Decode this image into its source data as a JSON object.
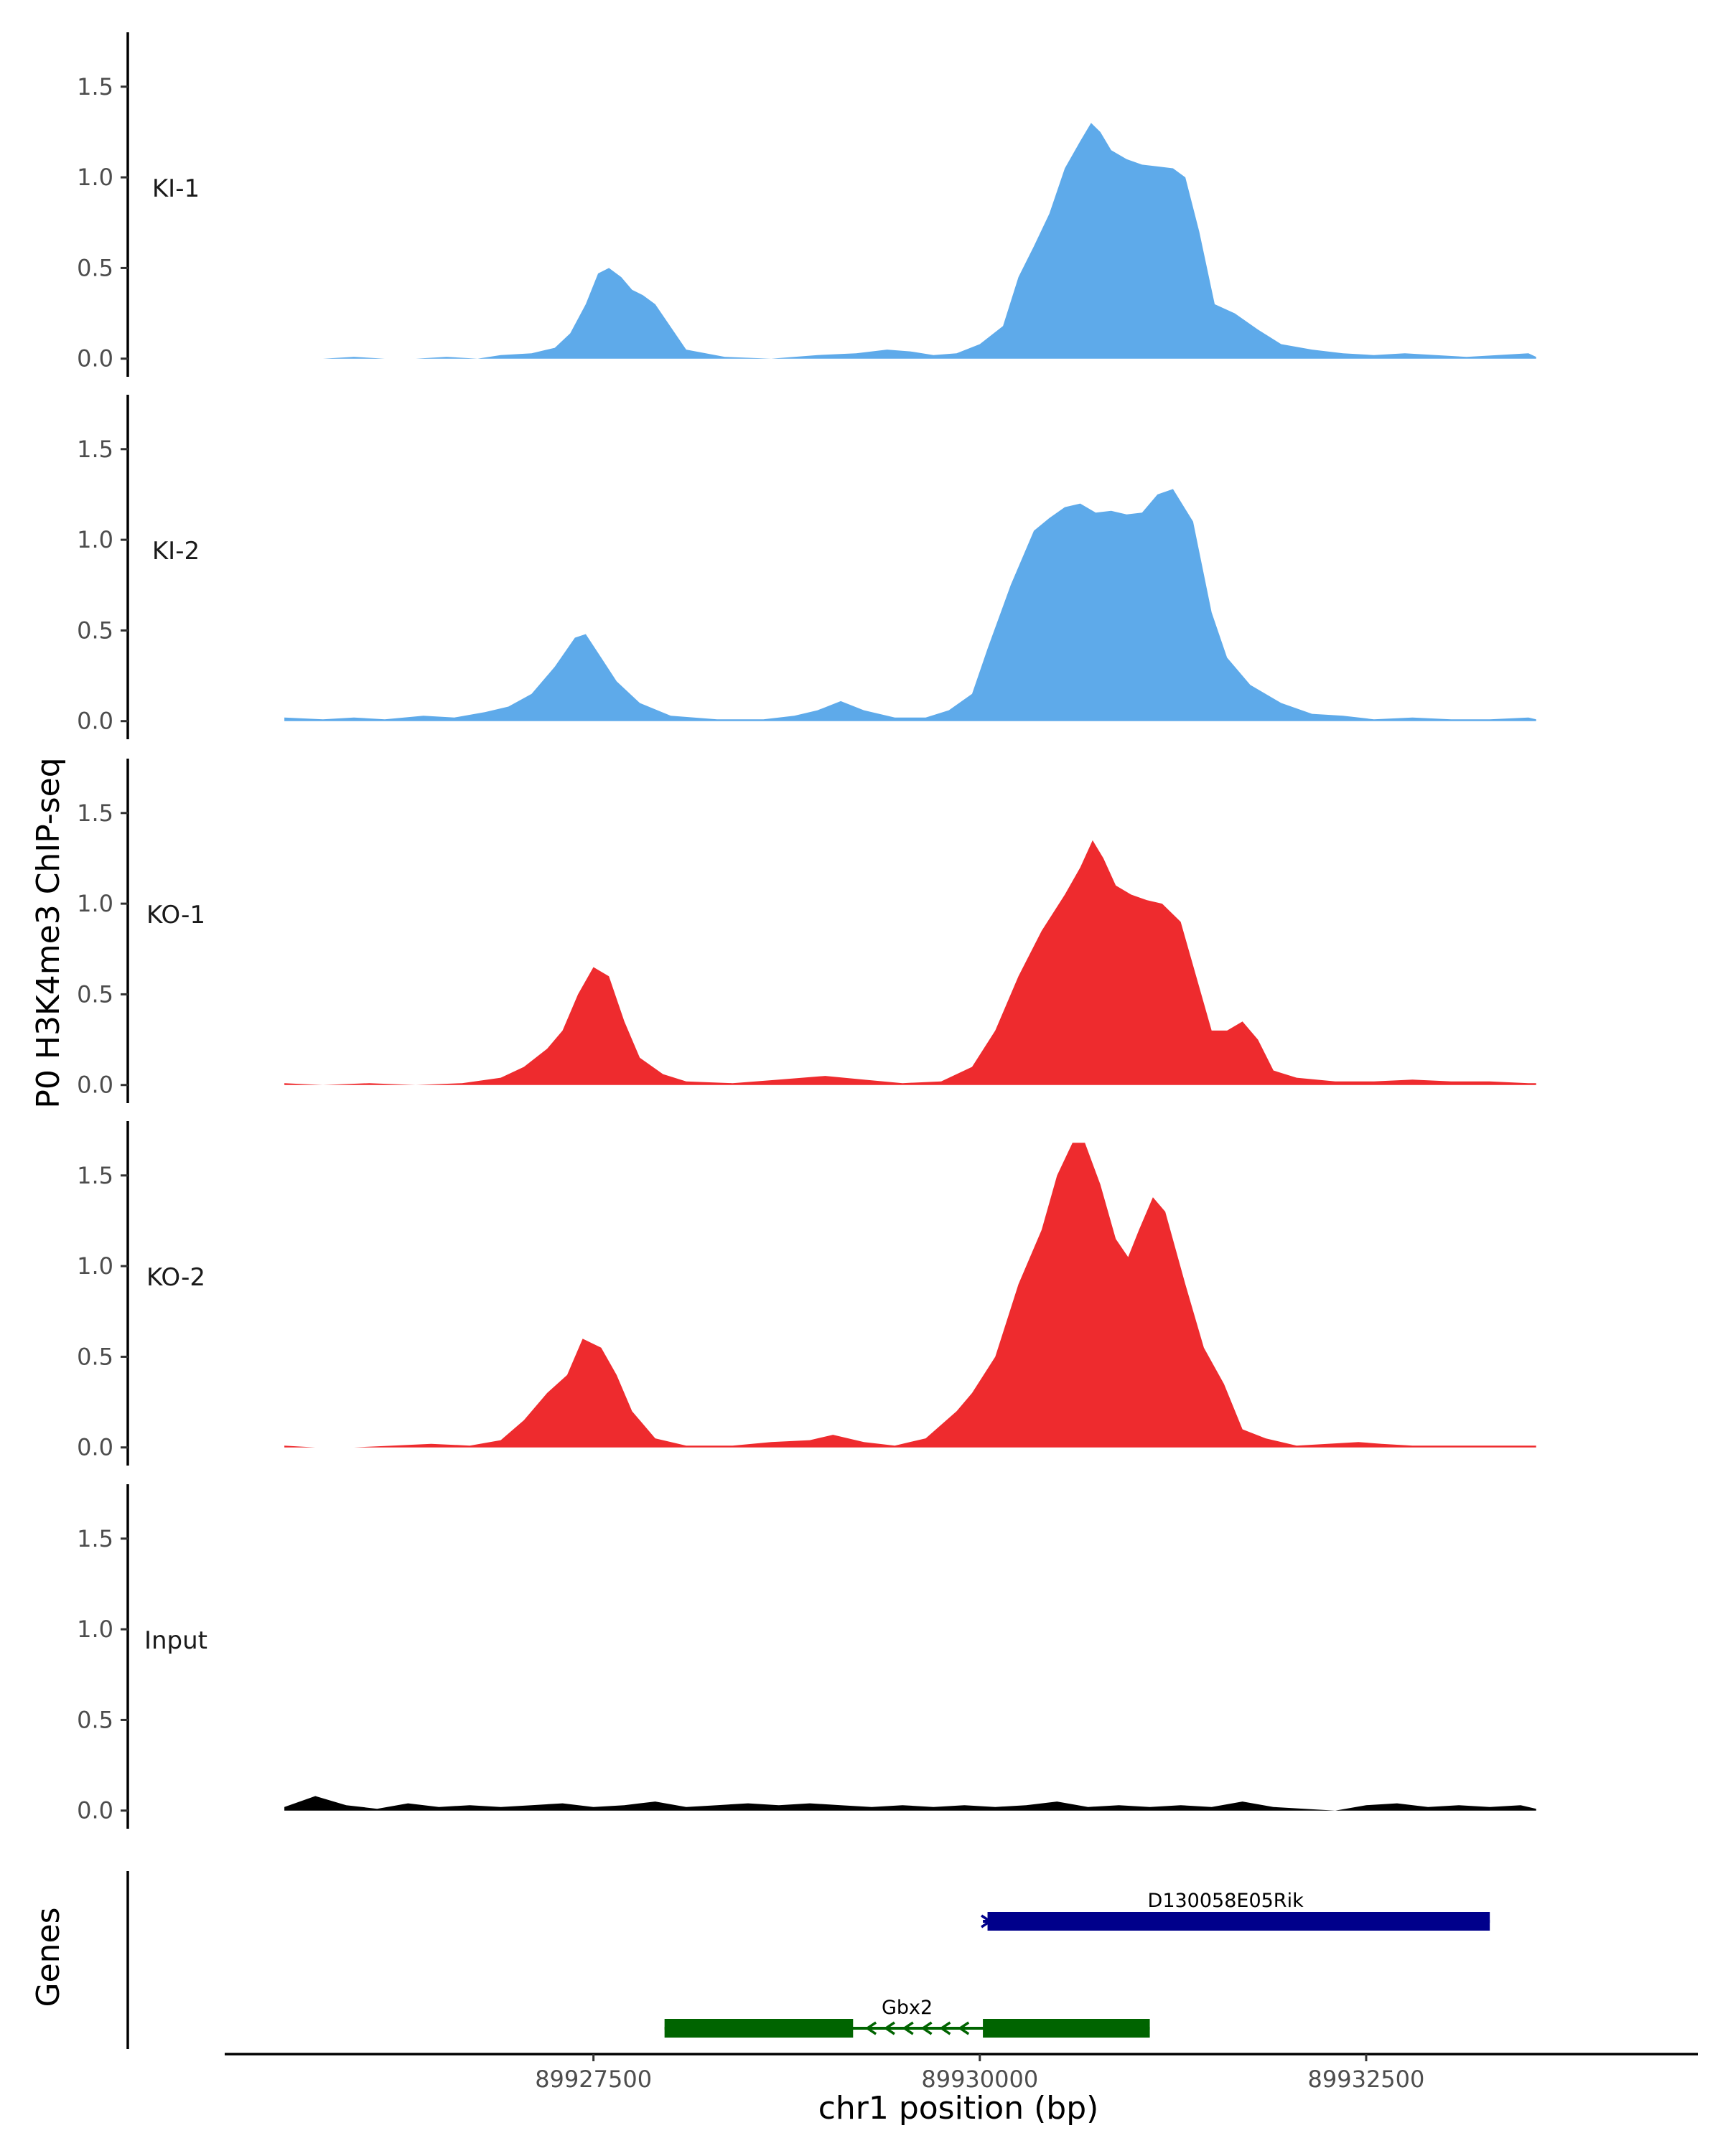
{
  "chart_data": {
    "type": "area",
    "ylabel": "P0 H3K4me3 ChIP-seq",
    "xlabel": "chr1 position (bp)",
    "xlim": [
      89925100,
      89934600
    ],
    "ylim": [
      -0.1,
      1.8
    ],
    "y_ticks": [
      0.0,
      0.5,
      1.0,
      1.5
    ],
    "y_tick_labels": [
      "0.0",
      "0.5",
      "1.0",
      "1.5"
    ],
    "x_ticks": [
      89927500,
      89930000,
      89932500
    ],
    "x_tick_labels": [
      "89927500",
      "89930000",
      "89932500"
    ],
    "genes_label": "Genes",
    "tracks": [
      {
        "name": "KI-1",
        "color": "#5eaaea",
        "points": [
          [
            89925750,
            0.0
          ],
          [
            89925950,
            0.01
          ],
          [
            89926150,
            0.0
          ],
          [
            89926350,
            0.0
          ],
          [
            89926550,
            0.01
          ],
          [
            89926750,
            0.0
          ],
          [
            89926900,
            0.02
          ],
          [
            89927100,
            0.03
          ],
          [
            89927250,
            0.06
          ],
          [
            89927350,
            0.14
          ],
          [
            89927450,
            0.3
          ],
          [
            89927530,
            0.47
          ],
          [
            89927600,
            0.5
          ],
          [
            89927680,
            0.45
          ],
          [
            89927750,
            0.38
          ],
          [
            89927820,
            0.35
          ],
          [
            89927900,
            0.3
          ],
          [
            89927980,
            0.2
          ],
          [
            89928100,
            0.05
          ],
          [
            89928350,
            0.01
          ],
          [
            89928650,
            0.0
          ],
          [
            89928950,
            0.02
          ],
          [
            89929200,
            0.03
          ],
          [
            89929400,
            0.05
          ],
          [
            89929550,
            0.04
          ],
          [
            89929700,
            0.02
          ],
          [
            89929850,
            0.03
          ],
          [
            89930000,
            0.08
          ],
          [
            89930150,
            0.18
          ],
          [
            89930250,
            0.45
          ],
          [
            89930350,
            0.62
          ],
          [
            89930450,
            0.8
          ],
          [
            89930550,
            1.05
          ],
          [
            89930650,
            1.2
          ],
          [
            89930720,
            1.3
          ],
          [
            89930780,
            1.25
          ],
          [
            89930850,
            1.15
          ],
          [
            89930950,
            1.1
          ],
          [
            89931050,
            1.07
          ],
          [
            89931150,
            1.06
          ],
          [
            89931250,
            1.05
          ],
          [
            89931330,
            1.0
          ],
          [
            89931420,
            0.7
          ],
          [
            89931520,
            0.3
          ],
          [
            89931650,
            0.25
          ],
          [
            89931800,
            0.16
          ],
          [
            89931950,
            0.08
          ],
          [
            89932150,
            0.05
          ],
          [
            89932350,
            0.03
          ],
          [
            89932550,
            0.02
          ],
          [
            89932750,
            0.03
          ],
          [
            89932950,
            0.02
          ],
          [
            89933150,
            0.01
          ],
          [
            89933350,
            0.02
          ],
          [
            89933550,
            0.03
          ],
          [
            89933600,
            0.01
          ]
        ]
      },
      {
        "name": "KI-2",
        "color": "#5eaaea",
        "points": [
          [
            89925500,
            0.02
          ],
          [
            89925750,
            0.01
          ],
          [
            89925950,
            0.02
          ],
          [
            89926150,
            0.01
          ],
          [
            89926400,
            0.03
          ],
          [
            89926600,
            0.02
          ],
          [
            89926800,
            0.05
          ],
          [
            89926950,
            0.08
          ],
          [
            89927100,
            0.15
          ],
          [
            89927250,
            0.3
          ],
          [
            89927380,
            0.46
          ],
          [
            89927450,
            0.48
          ],
          [
            89927550,
            0.35
          ],
          [
            89927650,
            0.22
          ],
          [
            89927800,
            0.1
          ],
          [
            89928000,
            0.03
          ],
          [
            89928300,
            0.01
          ],
          [
            89928600,
            0.01
          ],
          [
            89928800,
            0.03
          ],
          [
            89928950,
            0.06
          ],
          [
            89929100,
            0.11
          ],
          [
            89929250,
            0.06
          ],
          [
            89929450,
            0.02
          ],
          [
            89929650,
            0.02
          ],
          [
            89929800,
            0.06
          ],
          [
            89929950,
            0.15
          ],
          [
            89930050,
            0.4
          ],
          [
            89930200,
            0.75
          ],
          [
            89930350,
            1.05
          ],
          [
            89930450,
            1.12
          ],
          [
            89930550,
            1.18
          ],
          [
            89930650,
            1.2
          ],
          [
            89930750,
            1.15
          ],
          [
            89930850,
            1.16
          ],
          [
            89930950,
            1.14
          ],
          [
            89931050,
            1.15
          ],
          [
            89931150,
            1.25
          ],
          [
            89931250,
            1.28
          ],
          [
            89931380,
            1.1
          ],
          [
            89931500,
            0.6
          ],
          [
            89931600,
            0.35
          ],
          [
            89931750,
            0.2
          ],
          [
            89931950,
            0.1
          ],
          [
            89932150,
            0.04
          ],
          [
            89932350,
            0.03
          ],
          [
            89932550,
            0.01
          ],
          [
            89932800,
            0.02
          ],
          [
            89933050,
            0.01
          ],
          [
            89933300,
            0.01
          ],
          [
            89933550,
            0.02
          ],
          [
            89933600,
            0.01
          ]
        ]
      },
      {
        "name": "KO-1",
        "color": "#ee2b2e",
        "points": [
          [
            89925500,
            0.01
          ],
          [
            89925750,
            0.0
          ],
          [
            89926050,
            0.01
          ],
          [
            89926350,
            0.0
          ],
          [
            89926650,
            0.01
          ],
          [
            89926900,
            0.04
          ],
          [
            89927050,
            0.1
          ],
          [
            89927200,
            0.2
          ],
          [
            89927300,
            0.3
          ],
          [
            89927400,
            0.5
          ],
          [
            89927500,
            0.65
          ],
          [
            89927600,
            0.6
          ],
          [
            89927700,
            0.35
          ],
          [
            89927800,
            0.15
          ],
          [
            89927950,
            0.06
          ],
          [
            89928100,
            0.02
          ],
          [
            89928400,
            0.01
          ],
          [
            89928700,
            0.03
          ],
          [
            89929000,
            0.05
          ],
          [
            89929250,
            0.03
          ],
          [
            89929500,
            0.01
          ],
          [
            89929750,
            0.02
          ],
          [
            89929950,
            0.1
          ],
          [
            89930100,
            0.3
          ],
          [
            89930250,
            0.6
          ],
          [
            89930400,
            0.85
          ],
          [
            89930550,
            1.05
          ],
          [
            89930650,
            1.2
          ],
          [
            89930730,
            1.35
          ],
          [
            89930800,
            1.25
          ],
          [
            89930880,
            1.1
          ],
          [
            89930980,
            1.05
          ],
          [
            89931080,
            1.02
          ],
          [
            89931180,
            1.0
          ],
          [
            89931300,
            0.9
          ],
          [
            89931400,
            0.6
          ],
          [
            89931500,
            0.3
          ],
          [
            89931600,
            0.3
          ],
          [
            89931700,
            0.35
          ],
          [
            89931800,
            0.25
          ],
          [
            89931900,
            0.08
          ],
          [
            89932050,
            0.04
          ],
          [
            89932300,
            0.02
          ],
          [
            89932550,
            0.02
          ],
          [
            89932800,
            0.03
          ],
          [
            89933050,
            0.02
          ],
          [
            89933300,
            0.02
          ],
          [
            89933550,
            0.01
          ],
          [
            89933600,
            0.01
          ]
        ]
      },
      {
        "name": "KO-2",
        "color": "#ee2b2e",
        "points": [
          [
            89925500,
            0.01
          ],
          [
            89925700,
            0.0
          ],
          [
            89925950,
            0.0
          ],
          [
            89926200,
            0.01
          ],
          [
            89926450,
            0.02
          ],
          [
            89926700,
            0.01
          ],
          [
            89926900,
            0.04
          ],
          [
            89927050,
            0.15
          ],
          [
            89927200,
            0.3
          ],
          [
            89927330,
            0.4
          ],
          [
            89927430,
            0.6
          ],
          [
            89927550,
            0.55
          ],
          [
            89927650,
            0.4
          ],
          [
            89927750,
            0.2
          ],
          [
            89927900,
            0.05
          ],
          [
            89928100,
            0.01
          ],
          [
            89928400,
            0.01
          ],
          [
            89928650,
            0.03
          ],
          [
            89928900,
            0.04
          ],
          [
            89929050,
            0.07
          ],
          [
            89929250,
            0.03
          ],
          [
            89929450,
            0.01
          ],
          [
            89929650,
            0.05
          ],
          [
            89929850,
            0.2
          ],
          [
            89929950,
            0.3
          ],
          [
            89930100,
            0.5
          ],
          [
            89930250,
            0.9
          ],
          [
            89930400,
            1.2
          ],
          [
            89930500,
            1.5
          ],
          [
            89930600,
            1.68
          ],
          [
            89930680,
            1.68
          ],
          [
            89930780,
            1.45
          ],
          [
            89930880,
            1.15
          ],
          [
            89930960,
            1.05
          ],
          [
            89931030,
            1.2
          ],
          [
            89931120,
            1.38
          ],
          [
            89931200,
            1.3
          ],
          [
            89931330,
            0.9
          ],
          [
            89931450,
            0.55
          ],
          [
            89931580,
            0.35
          ],
          [
            89931700,
            0.1
          ],
          [
            89931850,
            0.05
          ],
          [
            89932050,
            0.01
          ],
          [
            89932250,
            0.02
          ],
          [
            89932450,
            0.03
          ],
          [
            89932600,
            0.02
          ],
          [
            89932800,
            0.01
          ],
          [
            89933050,
            0.01
          ],
          [
            89933300,
            0.01
          ],
          [
            89933550,
            0.01
          ],
          [
            89933600,
            0.01
          ]
        ]
      },
      {
        "name": "Input",
        "color": "#000000",
        "points": [
          [
            89925500,
            0.02
          ],
          [
            89925700,
            0.08
          ],
          [
            89925900,
            0.03
          ],
          [
            89926100,
            0.01
          ],
          [
            89926300,
            0.04
          ],
          [
            89926500,
            0.02
          ],
          [
            89926700,
            0.03
          ],
          [
            89926900,
            0.02
          ],
          [
            89927100,
            0.03
          ],
          [
            89927300,
            0.04
          ],
          [
            89927500,
            0.02
          ],
          [
            89927700,
            0.03
          ],
          [
            89927900,
            0.05
          ],
          [
            89928100,
            0.02
          ],
          [
            89928300,
            0.03
          ],
          [
            89928500,
            0.04
          ],
          [
            89928700,
            0.03
          ],
          [
            89928900,
            0.04
          ],
          [
            89929100,
            0.03
          ],
          [
            89929300,
            0.02
          ],
          [
            89929500,
            0.03
          ],
          [
            89929700,
            0.02
          ],
          [
            89929900,
            0.03
          ],
          [
            89930100,
            0.02
          ],
          [
            89930300,
            0.03
          ],
          [
            89930500,
            0.05
          ],
          [
            89930700,
            0.02
          ],
          [
            89930900,
            0.03
          ],
          [
            89931100,
            0.02
          ],
          [
            89931300,
            0.03
          ],
          [
            89931500,
            0.02
          ],
          [
            89931700,
            0.05
          ],
          [
            89931900,
            0.02
          ],
          [
            89932100,
            0.01
          ],
          [
            89932300,
            0.0
          ],
          [
            89932500,
            0.03
          ],
          [
            89932700,
            0.04
          ],
          [
            89932900,
            0.02
          ],
          [
            89933100,
            0.03
          ],
          [
            89933300,
            0.02
          ],
          [
            89933500,
            0.03
          ],
          [
            89933600,
            0.01
          ]
        ]
      }
    ],
    "genes": [
      {
        "name": "D130058E05Rik",
        "color": "#00008b",
        "strand": "+",
        "start": 89930020,
        "end": 89933300,
        "exons": [
          [
            89930050,
            89933300
          ]
        ]
      },
      {
        "name": "Gbx2",
        "color": "#006400",
        "strand": "-",
        "start": 89927960,
        "end": 89931100,
        "exons": [
          [
            89927960,
            89929180
          ],
          [
            89930020,
            89931100
          ]
        ]
      }
    ]
  }
}
